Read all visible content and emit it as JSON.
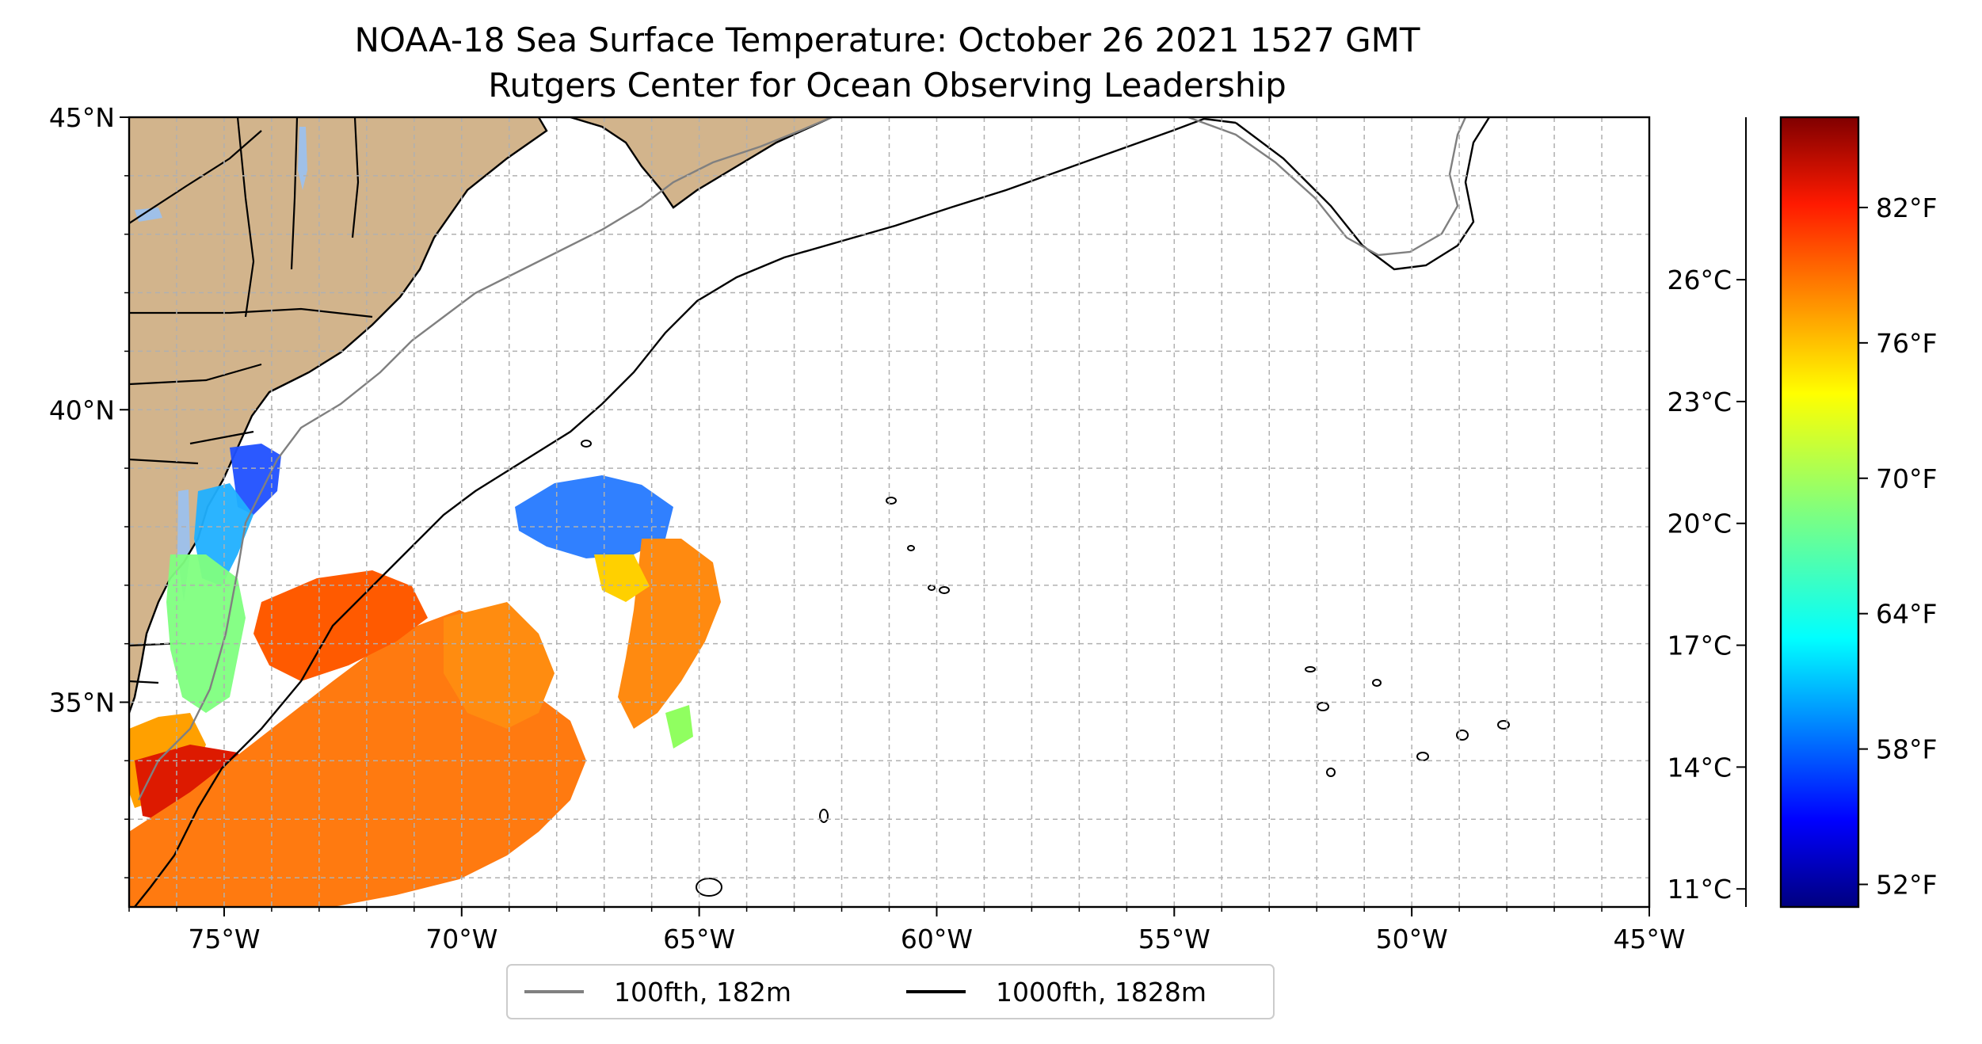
{
  "title": {
    "line1": "NOAA-18 Sea Surface Temperature: October 26 2021 1527 GMT",
    "line2": "Rutgers Center for Ocean Observing Leadership"
  },
  "map": {
    "lon_range": [
      -77,
      -45
    ],
    "lat_range": [
      31.5,
      45
    ],
    "lon_ticks": [
      {
        "value": -75,
        "label": "75°W"
      },
      {
        "value": -70,
        "label": "70°W"
      },
      {
        "value": -65,
        "label": "65°W"
      },
      {
        "value": -60,
        "label": "60°W"
      },
      {
        "value": -55,
        "label": "55°W"
      },
      {
        "value": -50,
        "label": "50°W"
      },
      {
        "value": -45,
        "label": "45°W"
      }
    ],
    "lat_ticks": [
      {
        "value": 45,
        "label": "45°N"
      },
      {
        "value": 40,
        "label": "40°N"
      },
      {
        "value": 35,
        "label": "35°N"
      }
    ],
    "grid": true,
    "land_color": "#d2b48c",
    "lake_color": "#9fc0e8",
    "ocean_color": "#ffffff"
  },
  "colorbar": {
    "colormap": "jet",
    "range_f": [
      51,
      86
    ],
    "celsius_ticks": [
      {
        "value": 11,
        "label": "11°C"
      },
      {
        "value": 14,
        "label": "14°C"
      },
      {
        "value": 17,
        "label": "17°C"
      },
      {
        "value": 20,
        "label": "20°C"
      },
      {
        "value": 23,
        "label": "23°C"
      },
      {
        "value": 26,
        "label": "26°C"
      }
    ],
    "fahrenheit_ticks": [
      {
        "value": 52,
        "label": "52°F"
      },
      {
        "value": 58,
        "label": "58°F"
      },
      {
        "value": 64,
        "label": "64°F"
      },
      {
        "value": 70,
        "label": "70°F"
      },
      {
        "value": 76,
        "label": "76°F"
      },
      {
        "value": 82,
        "label": "82°F"
      }
    ]
  },
  "legend": {
    "placement": "bottom-center",
    "items": [
      {
        "label": "100fth, 182m",
        "color": "#808080"
      },
      {
        "label": "1000fth, 1828m",
        "color": "#000000"
      }
    ]
  }
}
